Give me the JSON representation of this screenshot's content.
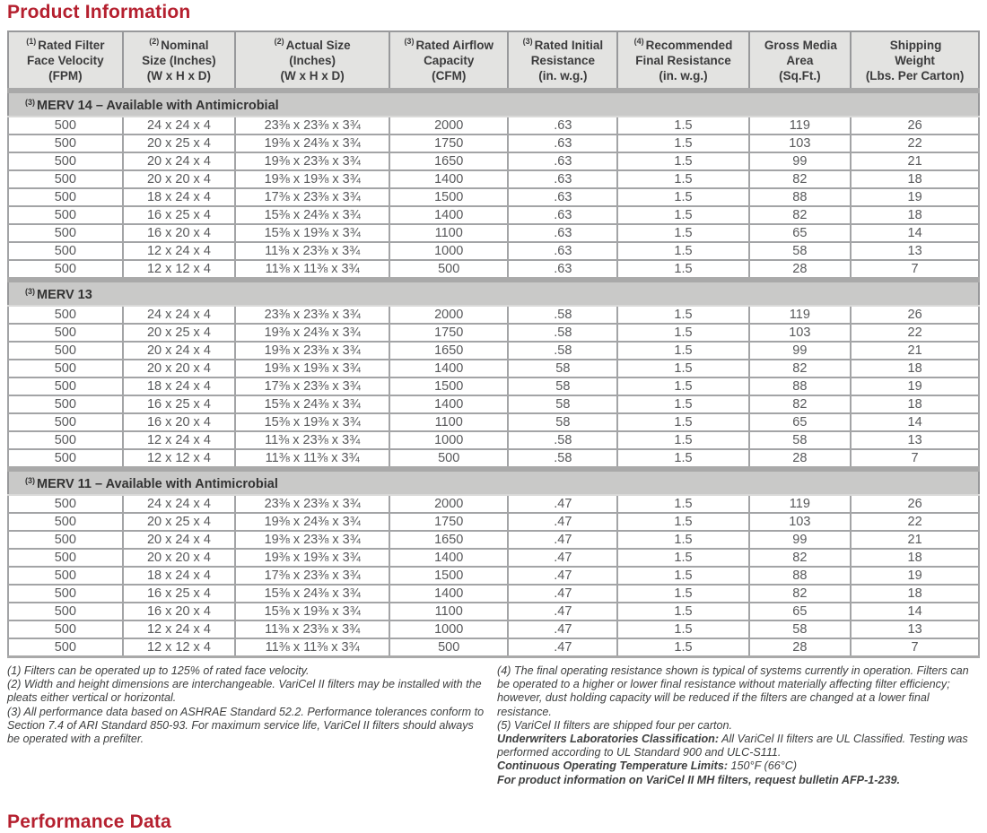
{
  "page_title": "Product Information",
  "performance_title": "Performance Data",
  "accent_red": "#b5202f",
  "header_bg": "#e3e3e1",
  "section_band_bg": "#c9c9c8",
  "table": {
    "columns": [
      {
        "sup": "(1)",
        "lines": [
          "Rated Filter",
          "Face Velocity",
          "(FPM)"
        ]
      },
      {
        "sup": "(2)",
        "lines": [
          "Nominal",
          "Size (Inches)",
          "(W x H x D)"
        ]
      },
      {
        "sup": "(2)",
        "lines": [
          "Actual Size",
          "(Inches)",
          "(W x H x D)"
        ]
      },
      {
        "sup": "(3)",
        "lines": [
          "Rated Airflow",
          "Capacity",
          "(CFM)"
        ]
      },
      {
        "sup": "(3)",
        "lines": [
          "Rated Initial",
          "Resistance",
          "(in. w.g.)"
        ]
      },
      {
        "sup": "(4)",
        "lines": [
          "Recommended",
          "Final Resistance",
          "(in. w.g.)"
        ]
      },
      {
        "sup": "",
        "lines": [
          "Gross Media",
          "Area",
          "(Sq.Ft.)"
        ]
      },
      {
        "sup": "",
        "lines": [
          "Shipping",
          "Weight",
          "(Lbs. Per Carton)"
        ]
      }
    ],
    "sections": [
      {
        "sup": "(3)",
        "label": "MERV 14 – Available with Antimicrobial",
        "rows": [
          [
            "500",
            "24 x 24 x 4",
            "23⅜ x 23⅜ x 3¾",
            "2000",
            ".63",
            "1.5",
            "119",
            "26"
          ],
          [
            "500",
            "20 x 25 x 4",
            "19⅜ x 24⅜ x 3¾",
            "1750",
            ".63",
            "1.5",
            "103",
            "22"
          ],
          [
            "500",
            "20 x 24 x 4",
            "19⅜ x 23⅜ x 3¾",
            "1650",
            ".63",
            "1.5",
            "99",
            "21"
          ],
          [
            "500",
            "20 x 20 x 4",
            "19⅜ x 19⅜ x 3¾",
            "1400",
            ".63",
            "1.5",
            "82",
            "18"
          ],
          [
            "500",
            "18 x 24 x 4",
            "17⅜ x 23⅜ x 3¾",
            "1500",
            ".63",
            "1.5",
            "88",
            "19"
          ],
          [
            "500",
            "16 x 25 x 4",
            "15⅜ x 24⅜ x 3¾",
            "1400",
            ".63",
            "1.5",
            "82",
            "18"
          ],
          [
            "500",
            "16 x 20 x 4",
            "15⅜ x 19⅜ x 3¾",
            "1100",
            ".63",
            "1.5",
            "65",
            "14"
          ],
          [
            "500",
            "12 x 24 x 4",
            "11⅜ x 23⅜ x 3¾",
            "1000",
            ".63",
            "1.5",
            "58",
            "13"
          ],
          [
            "500",
            "12 x 12 x 4",
            "11⅜ x 11⅜ x 3¾",
            "500",
            ".63",
            "1.5",
            "28",
            "7"
          ]
        ]
      },
      {
        "sup": "(3)",
        "label": "MERV 13",
        "rows": [
          [
            "500",
            "24 x 24 x 4",
            "23⅜ x 23⅜ x 3¾",
            "2000",
            ".58",
            "1.5",
            "119",
            "26"
          ],
          [
            "500",
            "20 x 25 x 4",
            "19⅜ x 24⅜ x 3¾",
            "1750",
            ".58",
            "1.5",
            "103",
            "22"
          ],
          [
            "500",
            "20 x 24 x 4",
            "19⅜ x 23⅜ x 3¾",
            "1650",
            ".58",
            "1.5",
            "99",
            "21"
          ],
          [
            "500",
            "20 x 20 x 4",
            "19⅜ x 19⅜ x 3¾",
            "1400",
            "58",
            "1.5",
            "82",
            "18"
          ],
          [
            "500",
            "18 x 24 x 4",
            "17⅜ x 23⅜ x 3¾",
            "1500",
            "58",
            "1.5",
            "88",
            "19"
          ],
          [
            "500",
            "16 x 25 x 4",
            "15⅜ x 24⅜ x 3¾",
            "1400",
            "58",
            "1.5",
            "82",
            "18"
          ],
          [
            "500",
            "16 x 20 x 4",
            "15⅜ x 19⅜ x 3¾",
            "1100",
            "58",
            "1.5",
            "65",
            "14"
          ],
          [
            "500",
            "12 x 24 x 4",
            "11⅜ x 23⅜ x 3¾",
            "1000",
            ".58",
            "1.5",
            "58",
            "13"
          ],
          [
            "500",
            "12 x 12 x 4",
            "11⅜ x 11⅜ x 3¾",
            "500",
            ".58",
            "1.5",
            "28",
            "7"
          ]
        ]
      },
      {
        "sup": "(3)",
        "label": "MERV 11 – Available with Antimicrobial",
        "rows": [
          [
            "500",
            "24 x 24 x 4",
            "23⅜ x 23⅜ x 3¾",
            "2000",
            ".47",
            "1.5",
            "119",
            "26"
          ],
          [
            "500",
            "20 x 25 x 4",
            "19⅜ x 24⅜ x 3¾",
            "1750",
            ".47",
            "1.5",
            "103",
            "22"
          ],
          [
            "500",
            "20 x 24 x 4",
            "19⅜ x 23⅜ x 3¾",
            "1650",
            ".47",
            "1.5",
            "99",
            "21"
          ],
          [
            "500",
            "20 x 20 x 4",
            "19⅜ x 19⅜ x 3¾",
            "1400",
            ".47",
            "1.5",
            "82",
            "18"
          ],
          [
            "500",
            "18 x 24 x 4",
            "17⅜ x 23⅜ x 3¾",
            "1500",
            ".47",
            "1.5",
            "88",
            "19"
          ],
          [
            "500",
            "16 x 25 x 4",
            "15⅜ x 24⅜ x 3¾",
            "1400",
            ".47",
            "1.5",
            "82",
            "18"
          ],
          [
            "500",
            "16 x 20 x 4",
            "15⅜ x 19⅜ x 3¾",
            "1100",
            ".47",
            "1.5",
            "65",
            "14"
          ],
          [
            "500",
            "12 x 24 x 4",
            "11⅜ x 23⅜ x 3¾",
            "1000",
            ".47",
            "1.5",
            "58",
            "13"
          ],
          [
            "500",
            "12 x 12 x 4",
            "11⅜ x 11⅜ x 3¾",
            "500",
            ".47",
            "1.5",
            "28",
            "7"
          ]
        ]
      }
    ]
  },
  "footnotes_left": [
    {
      "lead": "",
      "text": "(1) Filters can be operated up to 125% of rated face velocity."
    },
    {
      "lead": "",
      "text": "(2) Width and height dimensions are interchangeable. VariCel II filters may be installed with the pleats either vertical or horizontal."
    },
    {
      "lead": "",
      "text": "(3) All performance data based on ASHRAE Standard 52.2. Performance tolerances conform to Section 7.4 of ARI Standard 850-93. For maximum service life, VariCel II filters should always be operated with a prefilter."
    }
  ],
  "footnotes_right": [
    {
      "lead": "",
      "text": "(4) The final operating resistance shown is typical of systems currently in operation. Filters can be operated to a higher or lower final resistance without materially affecting filter efficiency; however, dust holding capacity will be reduced if the filters are changed at a lower final resistance."
    },
    {
      "lead": "",
      "text": "(5) VariCel II filters are shipped four per carton."
    },
    {
      "lead": "Underwriters Laboratories Classification:",
      "text": " All VariCel II filters are UL Classified. Testing was performed according to UL Standard 900 and ULC-S111."
    },
    {
      "lead": "Continuous Operating Temperature Limits:",
      "text": " 150°F (66°C)"
    },
    {
      "lead": "For product information on VariCel II MH filters, request bulletin AFP-1-239.",
      "text": ""
    }
  ]
}
